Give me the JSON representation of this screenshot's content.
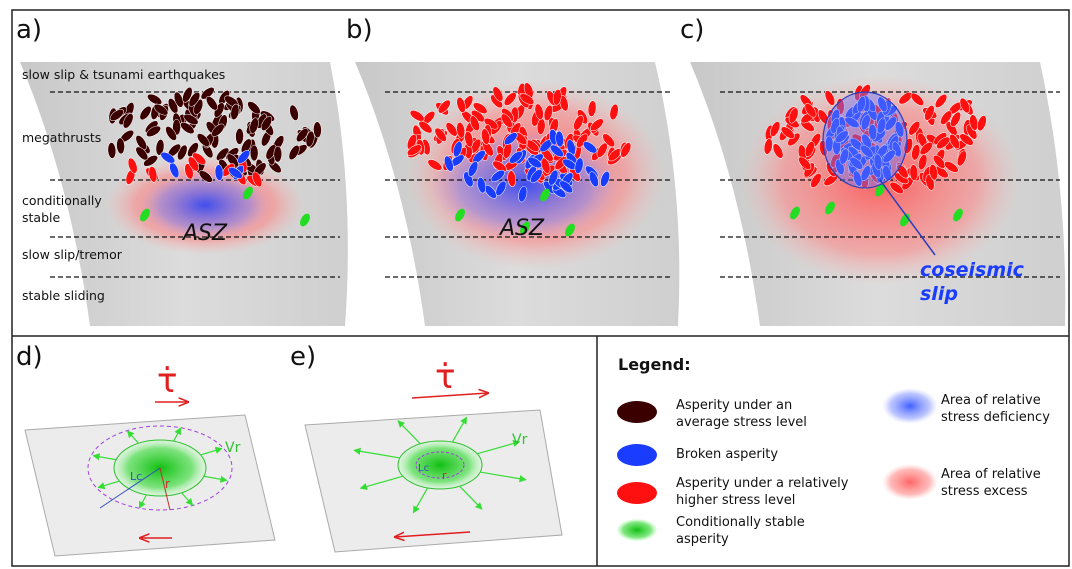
{
  "panels": [
    "a)",
    "b)",
    "c)",
    "d)",
    "e)"
  ],
  "zones": [
    "slow slip & tsunami earthquakes",
    "megathrusts",
    "conditionally",
    "stable",
    "slow slip/tremor",
    "stable sliding"
  ],
  "asz": [
    "ASZ",
    "ASZ"
  ],
  "coseismic": [
    "coseismic",
    "slip"
  ],
  "stress_rate": [
    "τ̇",
    "τ̇"
  ],
  "rupture_labels": {
    "vr": [
      "Vr",
      "Vr"
    ],
    "lc": [
      "Lc",
      "Lc"
    ],
    "r": [
      "r",
      "r"
    ]
  },
  "legend": {
    "title": "Legend:",
    "items": [
      [
        "Asperity under an",
        "average stress level"
      ],
      [
        "Broken asperity"
      ],
      [
        "Asperity under a relatively",
        "higher stress level"
      ],
      [
        "Conditionally stable",
        "asperity"
      ],
      [
        "Area of relative",
        "stress deficiency"
      ],
      [
        "Area of relative",
        "stress excess"
      ]
    ]
  }
}
